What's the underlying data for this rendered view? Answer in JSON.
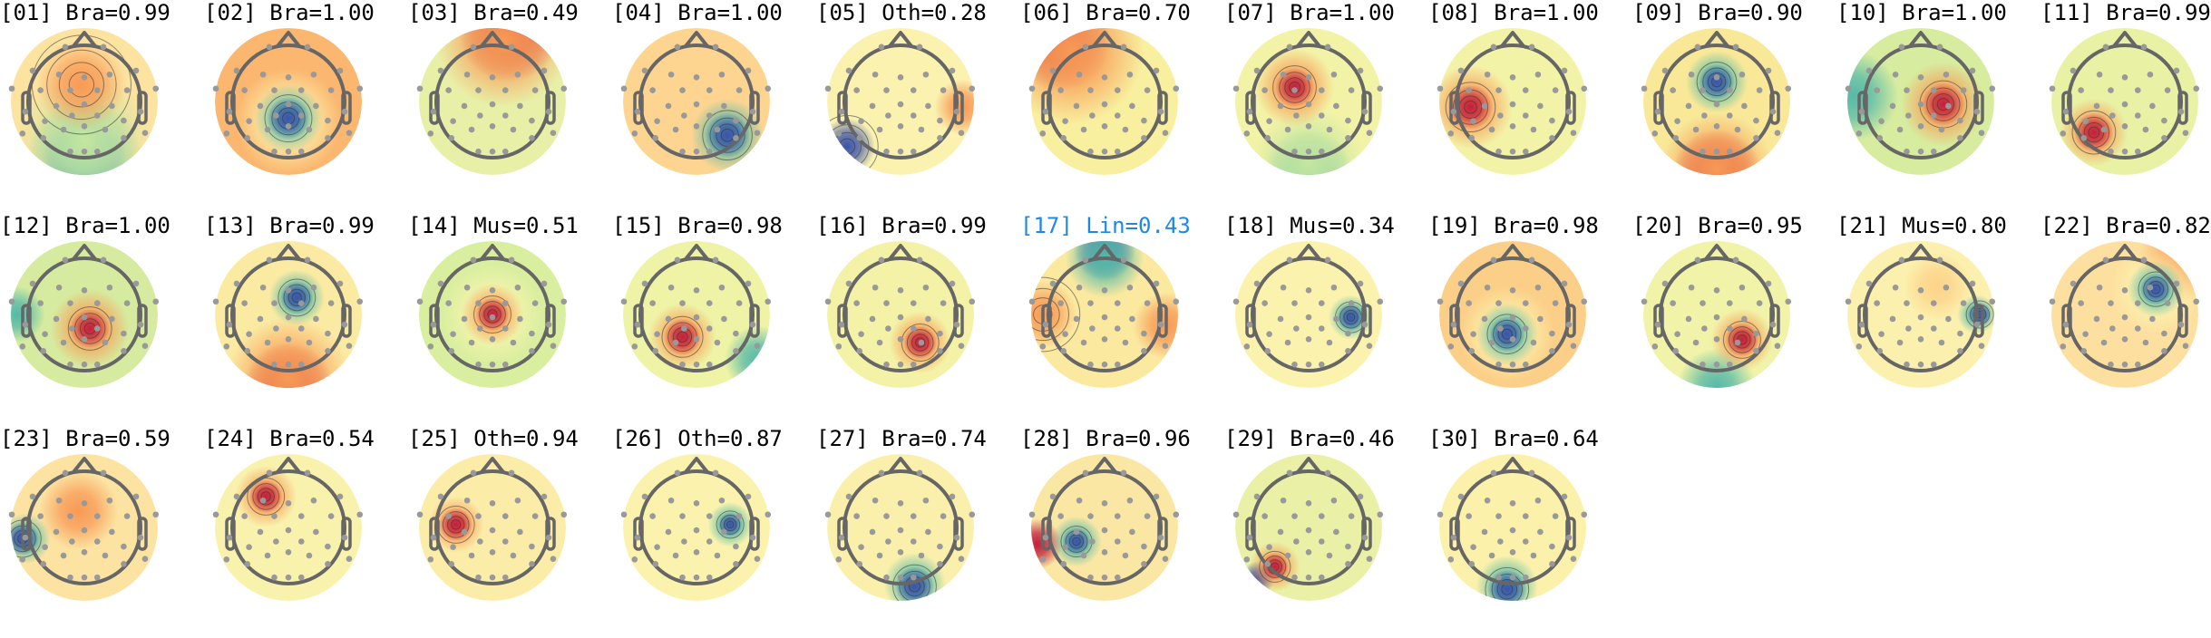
{
  "figure": {
    "components": [
      {
        "id": "01",
        "label": "[01] Bra=0.99",
        "class": "Bra",
        "score": 0.99
      },
      {
        "id": "02",
        "label": "[02] Bra=1.00",
        "class": "Bra",
        "score": 1.0
      },
      {
        "id": "03",
        "label": "[03] Bra=0.49",
        "class": "Bra",
        "score": 0.49
      },
      {
        "id": "04",
        "label": "[04] Bra=1.00",
        "class": "Bra",
        "score": 1.0
      },
      {
        "id": "05",
        "label": "[05] Oth=0.28",
        "class": "Oth",
        "score": 0.28
      },
      {
        "id": "06",
        "label": "[06] Bra=0.70",
        "class": "Bra",
        "score": 0.7
      },
      {
        "id": "07",
        "label": "[07] Bra=1.00",
        "class": "Bra",
        "score": 1.0
      },
      {
        "id": "08",
        "label": "[08] Bra=1.00",
        "class": "Bra",
        "score": 1.0
      },
      {
        "id": "09",
        "label": "[09] Bra=0.90",
        "class": "Bra",
        "score": 0.9
      },
      {
        "id": "10",
        "label": "[10] Bra=1.00",
        "class": "Bra",
        "score": 1.0
      },
      {
        "id": "11",
        "label": "[11] Bra=0.99",
        "class": "Bra",
        "score": 0.99
      },
      {
        "id": "12",
        "label": "[12] Bra=1.00",
        "class": "Bra",
        "score": 1.0
      },
      {
        "id": "13",
        "label": "[13] Bra=0.99",
        "class": "Bra",
        "score": 0.99
      },
      {
        "id": "14",
        "label": "[14] Mus=0.51",
        "class": "Mus",
        "score": 0.51
      },
      {
        "id": "15",
        "label": "[15] Bra=0.98",
        "class": "Bra",
        "score": 0.98
      },
      {
        "id": "16",
        "label": "[16] Bra=0.99",
        "class": "Bra",
        "score": 0.99
      },
      {
        "id": "17",
        "label": "[17] Lin=0.43",
        "class": "Lin",
        "score": 0.43,
        "highlighted": true
      },
      {
        "id": "18",
        "label": "[18] Mus=0.34",
        "class": "Mus",
        "score": 0.34
      },
      {
        "id": "19",
        "label": "[19] Bra=0.98",
        "class": "Bra",
        "score": 0.98
      },
      {
        "id": "20",
        "label": "[20] Bra=0.95",
        "class": "Bra",
        "score": 0.95
      },
      {
        "id": "21",
        "label": "[21] Mus=0.80",
        "class": "Mus",
        "score": 0.8
      },
      {
        "id": "22",
        "label": "[22] Bra=0.82",
        "class": "Bra",
        "score": 0.82
      },
      {
        "id": "23",
        "label": "[23] Bra=0.59",
        "class": "Bra",
        "score": 0.59
      },
      {
        "id": "24",
        "label": "[24] Bra=0.54",
        "class": "Bra",
        "score": 0.54
      },
      {
        "id": "25",
        "label": "[25] Oth=0.94",
        "class": "Oth",
        "score": 0.94
      },
      {
        "id": "26",
        "label": "[26] Oth=0.87",
        "class": "Oth",
        "score": 0.87
      },
      {
        "id": "27",
        "label": "[27] Bra=0.74",
        "class": "Bra",
        "score": 0.74
      },
      {
        "id": "28",
        "label": "[28] Bra=0.96",
        "class": "Bra",
        "score": 0.96
      },
      {
        "id": "29",
        "label": "[29] Bra=0.46",
        "class": "Bra",
        "score": 0.46
      },
      {
        "id": "30",
        "label": "[30] Bra=0.64",
        "class": "Bra",
        "score": 0.64
      }
    ],
    "colors": {
      "title": "#000000",
      "highlight_title": "#1e88e5",
      "head_outline": "#666666",
      "sensor": "#999999"
    },
    "colormap": "spectral (blue-green-yellow-orange-red)"
  }
}
